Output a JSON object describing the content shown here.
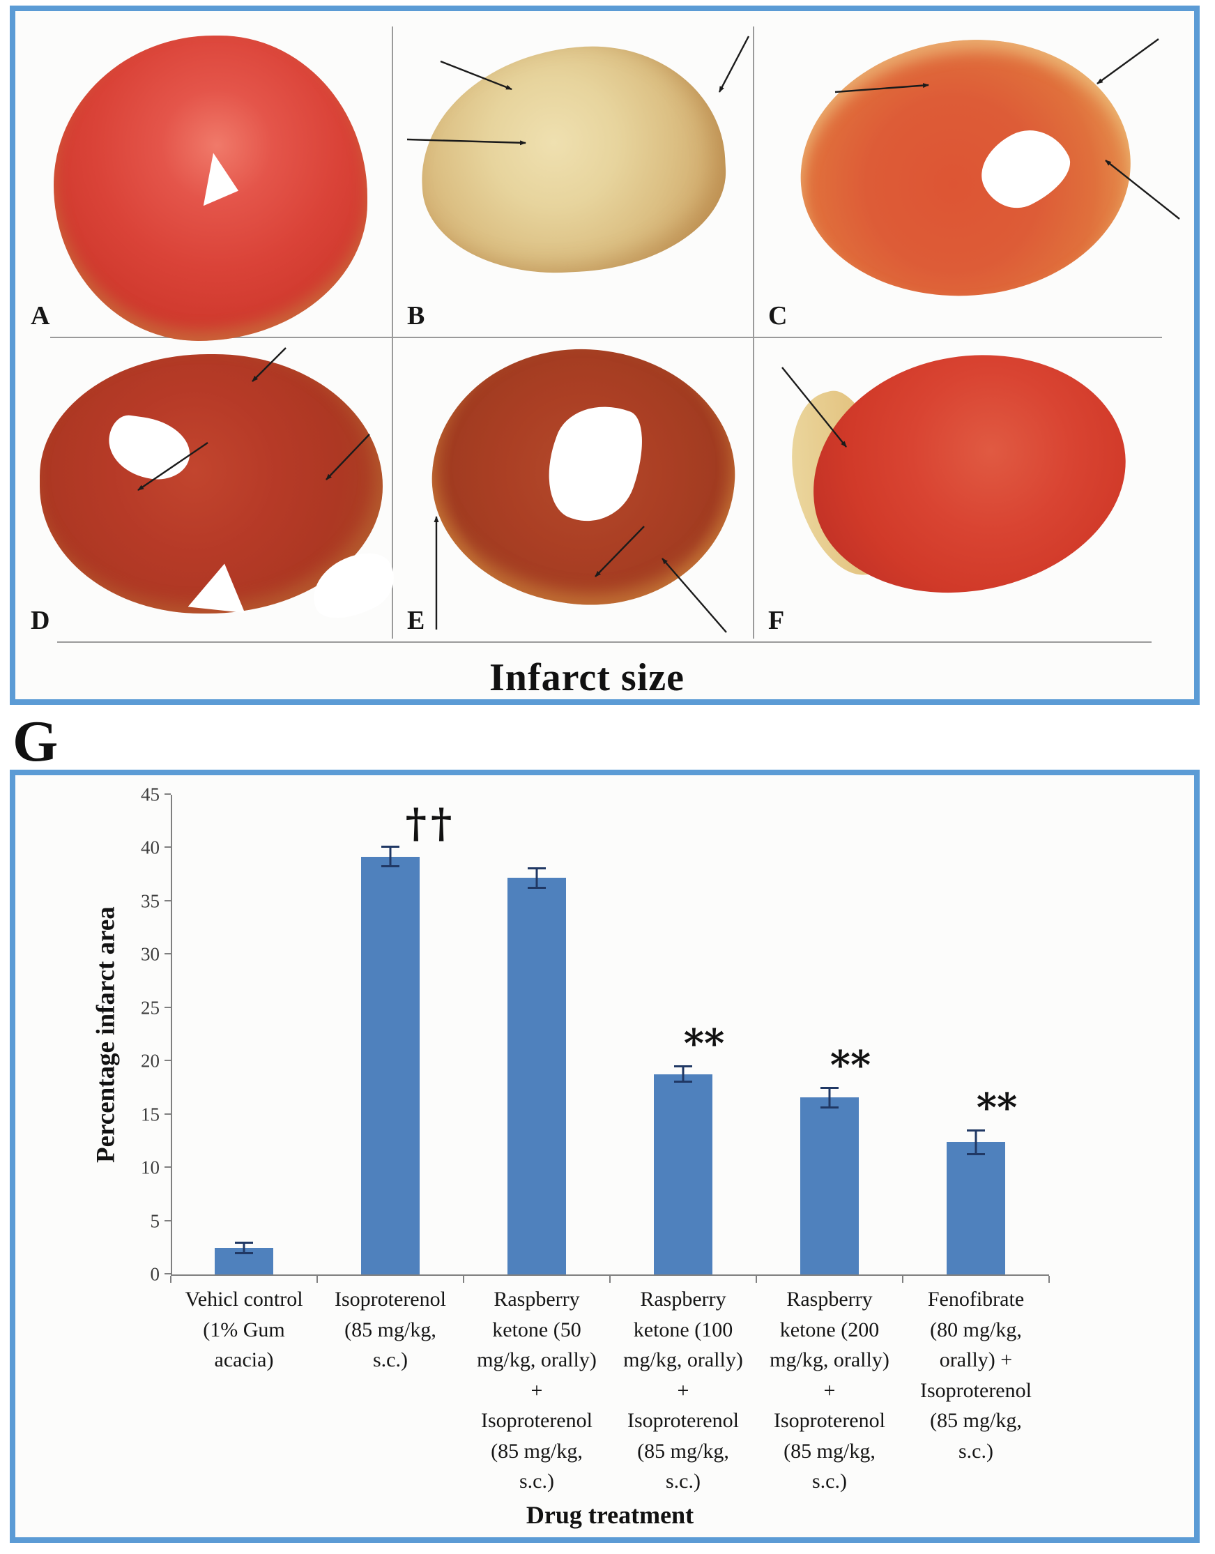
{
  "top_panel": {
    "border_color": "#5B9BD5",
    "caption": "Infarct size",
    "panels": [
      {
        "label": "A"
      },
      {
        "label": "B"
      },
      {
        "label": "C"
      },
      {
        "label": "D"
      },
      {
        "label": "E"
      },
      {
        "label": "F"
      }
    ]
  },
  "section_label": "G",
  "chart_panel": {
    "border_color": "#5B9BD5"
  },
  "chart_data": {
    "type": "bar",
    "title": "",
    "ylabel": "Percentage infarct area",
    "xlabel": "Drug treatment",
    "ylim": [
      0,
      45
    ],
    "yticks": [
      0,
      5,
      10,
      15,
      20,
      25,
      30,
      35,
      40,
      45
    ],
    "grid": false,
    "legend": false,
    "bar_color": "#4F81BD",
    "error_bar_color": "#203864",
    "axis_color": "#7F7F7F",
    "categories": [
      "Vehicl control\n(1% Gum\nacacia)",
      "Isoproterenol\n(85 mg/kg,\ns.c.)",
      "Raspberry\nketone (50\nmg/kg, orally)\n+\nIsoproterenol\n(85 mg/kg,\ns.c.)",
      "Raspberry\nketone (100\nmg/kg, orally)\n+\nIsoproterenol\n(85 mg/kg,\ns.c.)",
      "Raspberry\nketone (200\nmg/kg, orally)\n+\nIsoproterenol\n(85 mg/kg,\ns.c.)",
      "Fenofibrate\n(80 mg/kg,\norally) +\nIsoproterenol\n(85 mg/kg,\ns.c.)"
    ],
    "values": [
      2.5,
      39.2,
      37.2,
      18.8,
      16.6,
      12.4
    ],
    "errors": [
      0.6,
      1.0,
      1.0,
      0.8,
      1.0,
      1.2
    ],
    "annotations": [
      "",
      "††",
      "",
      "**",
      "**",
      "**"
    ]
  }
}
